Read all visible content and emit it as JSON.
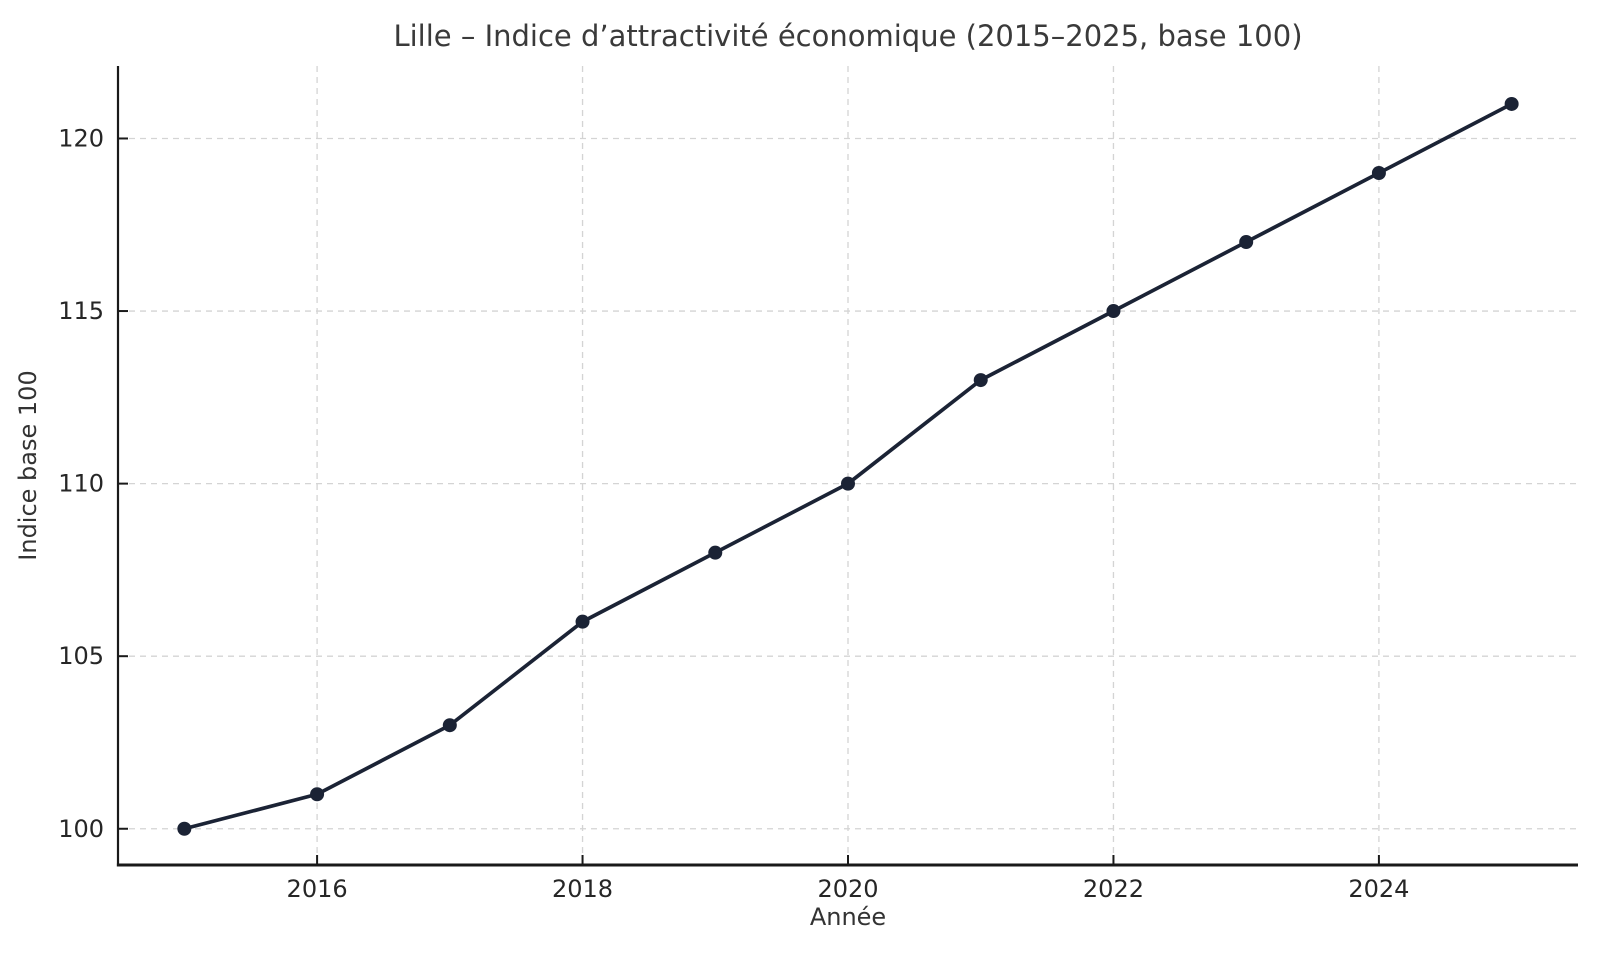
{
  "chart_data": {
    "type": "line",
    "title": "Lille – Indice d’attractivité économique (2015–2025, base 100)",
    "xlabel": "Année",
    "ylabel": "Indice base 100",
    "x": [
      2015,
      2016,
      2017,
      2018,
      2019,
      2020,
      2021,
      2022,
      2023,
      2024,
      2025
    ],
    "series": [
      {
        "name": "Indice base 100",
        "values": [
          100,
          101,
          103,
          106,
          108,
          110,
          113,
          115,
          117,
          119,
          121
        ]
      }
    ],
    "xticks": [
      2016,
      2018,
      2020,
      2022,
      2024
    ],
    "yticks": [
      100,
      105,
      110,
      115,
      120
    ],
    "xlim": [
      2014.5,
      2025.5
    ],
    "ylim": [
      98.95,
      122.1
    ],
    "grid": true,
    "grid_style": "dashed",
    "legend": false,
    "marker": "circle",
    "colors": {
      "line": "#1b2335",
      "marker": "#1b2335",
      "grid": "#d4d4d4",
      "axis": "#1a1a1a",
      "title": "#3a3a3a",
      "tick_label": "#262626",
      "background": "#ffffff"
    }
  }
}
